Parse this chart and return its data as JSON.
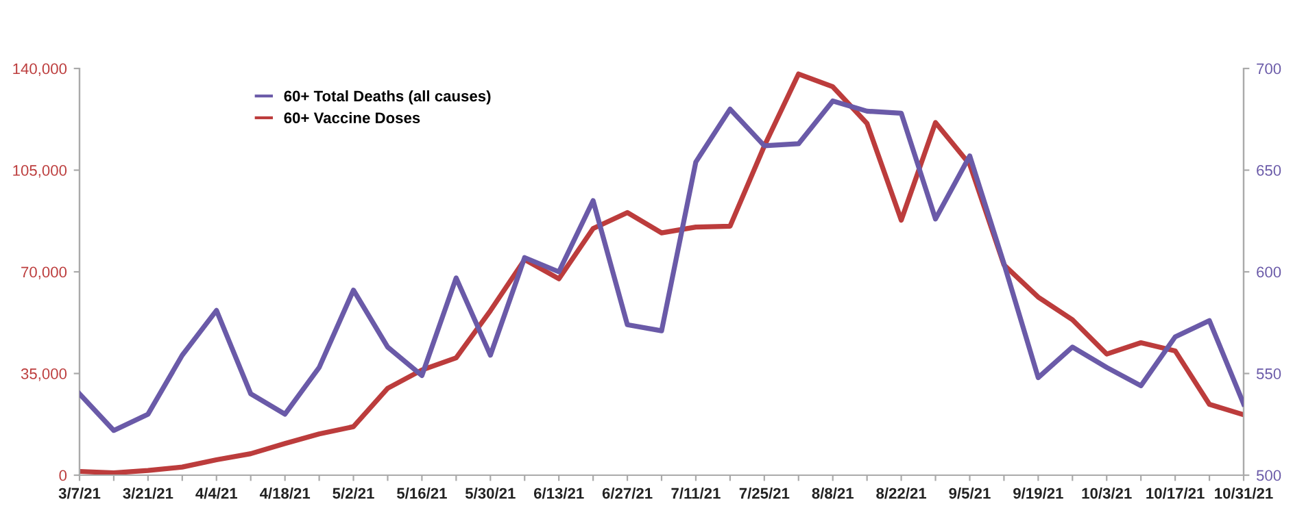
{
  "chart_data": {
    "type": "line",
    "categories": [
      "3/7/21",
      null,
      "3/21/21",
      null,
      "4/4/21",
      null,
      "4/18/21",
      null,
      "5/2/21",
      null,
      "5/16/21",
      null,
      "5/30/21",
      null,
      "6/13/21",
      null,
      "6/27/21",
      null,
      "7/11/21",
      null,
      "7/25/21",
      null,
      "8/8/21",
      null,
      "8/22/21",
      null,
      "9/5/21",
      null,
      "9/19/21",
      null,
      "10/3/21",
      null,
      "10/17/21",
      null,
      "10/31/21"
    ],
    "series": [
      {
        "name": "60+ Total Deaths (all causes)",
        "color": "#6a5aa8",
        "axis": "y2",
        "values": [
          540,
          522,
          530,
          559,
          581,
          540,
          530,
          553,
          591,
          563,
          549,
          597,
          559,
          607,
          600,
          635,
          574,
          571,
          654,
          680,
          662,
          663,
          684,
          679,
          678,
          626,
          657,
          604,
          548,
          563,
          553,
          544,
          568,
          576,
          535
        ]
      },
      {
        "name": "60+ Vaccine Doses",
        "color": "#bc3c3c",
        "values": [
          1300,
          800,
          1600,
          2800,
          5300,
          7400,
          10900,
          14200,
          16700,
          29900,
          36200,
          40400,
          56600,
          74200,
          67600,
          84900,
          90400,
          83400,
          85400,
          85700,
          113300,
          138100,
          133700,
          121100,
          87800,
          121400,
          107000,
          72400,
          61300,
          53500,
          41700,
          45600,
          42800,
          24400,
          20800
        ]
      }
    ],
    "ylim": [
      0,
      140000
    ],
    "yticks": [
      0,
      {
        "value": 35000,
        "label": "35,000"
      },
      {
        "value": 70000,
        "label": "70,000"
      },
      {
        "value": 105000,
        "label": "105,000"
      },
      {
        "value": 140000,
        "label": "140,000"
      }
    ],
    "y2lim": [
      500,
      700
    ],
    "y2ticks": [
      500,
      550,
      600,
      650,
      700
    ],
    "legend": "top left",
    "grid": false,
    "line_style": "solid",
    "marker": "none"
  }
}
